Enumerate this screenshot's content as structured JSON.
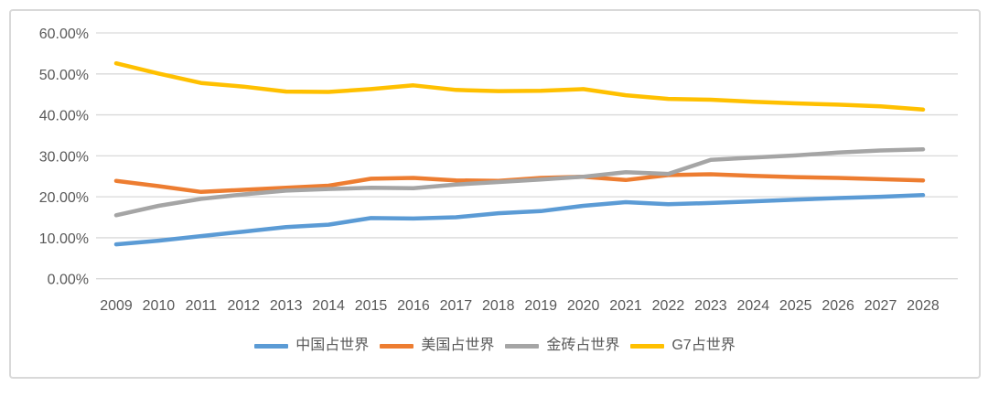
{
  "chart_data": {
    "type": "line",
    "title": "",
    "xlabel": "",
    "ylabel": "",
    "x": [
      "2009",
      "2010",
      "2011",
      "2012",
      "2013",
      "2014",
      "2015",
      "2016",
      "2017",
      "2018",
      "2019",
      "2020",
      "2021",
      "2022",
      "2023",
      "2024",
      "2025",
      "2026",
      "2027",
      "2028"
    ],
    "y_ticks": [
      "60.00%",
      "50.00%",
      "40.00%",
      "30.00%",
      "20.00%",
      "10.00%",
      "0.00%"
    ],
    "y_tick_values": [
      60,
      50,
      40,
      30,
      20,
      10,
      0
    ],
    "ylim": [
      0,
      60
    ],
    "grid": "horizontal",
    "legend_position": "bottom",
    "series": [
      {
        "name": "中国占世界",
        "color": "#5B9BD5",
        "values": [
          8.4,
          9.3,
          10.4,
          11.5,
          12.6,
          13.2,
          14.8,
          14.7,
          15.0,
          16.0,
          16.5,
          17.8,
          18.7,
          18.2,
          18.5,
          18.9,
          19.3,
          19.7,
          20.0,
          20.4
        ]
      },
      {
        "name": "美国占世界",
        "color": "#ED7D31",
        "values": [
          23.9,
          22.6,
          21.2,
          21.7,
          22.2,
          22.7,
          24.4,
          24.6,
          24.0,
          23.9,
          24.6,
          24.9,
          24.1,
          25.3,
          25.5,
          25.1,
          24.8,
          24.6,
          24.3,
          24.0
        ]
      },
      {
        "name": "金砖占世界",
        "color": "#A5A5A5",
        "values": [
          15.5,
          17.8,
          19.5,
          20.6,
          21.5,
          21.9,
          22.2,
          22.1,
          23.0,
          23.6,
          24.2,
          24.9,
          26.0,
          25.6,
          29.0,
          29.6,
          30.1,
          30.8,
          31.3,
          31.6
        ]
      },
      {
        "name": "G7占世界",
        "color": "#FFC000",
        "values": [
          52.6,
          50.1,
          47.8,
          46.9,
          45.7,
          45.6,
          46.3,
          47.2,
          46.1,
          45.8,
          45.9,
          46.3,
          44.8,
          43.9,
          43.7,
          43.2,
          42.8,
          42.5,
          42.1,
          41.3
        ]
      }
    ],
    "colors": {
      "axis_text": "#595959",
      "gridline": "#D9D9D9",
      "frame_border": "#D9D9D9",
      "background": "#FFFFFF"
    }
  }
}
